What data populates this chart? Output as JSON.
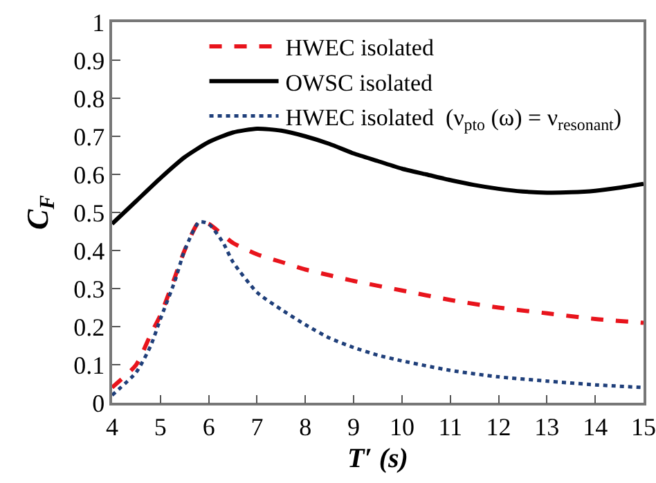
{
  "chart_data": {
    "type": "line",
    "xlabel": "T′ (s)",
    "ylabel": "C$_{F}$",
    "xlim": [
      4,
      15
    ],
    "xticks": [
      4,
      5,
      6,
      7,
      8,
      9,
      10,
      11,
      12,
      13,
      14,
      15
    ],
    "ylim": [
      0,
      1
    ],
    "yticks": [
      0,
      0.1,
      0.2,
      0.3,
      0.4,
      0.5,
      0.6,
      0.7,
      0.8,
      0.9,
      1
    ],
    "grid": false,
    "legend": "top",
    "marker": "none",
    "series": [
      {
        "name": "HWEC isolated",
        "color": "#e8141c",
        "line_style": "dashed",
        "x": [
          4,
          4.5,
          4.8,
          5,
          5.3,
          5.5,
          5.8,
          6,
          6.3,
          6.5,
          7,
          7.5,
          8,
          8.5,
          9,
          10,
          11,
          12,
          13,
          14,
          15
        ],
        "values": [
          0.04,
          0.1,
          0.18,
          0.23,
          0.33,
          0.4,
          0.475,
          0.47,
          0.44,
          0.42,
          0.39,
          0.37,
          0.35,
          0.335,
          0.32,
          0.295,
          0.27,
          0.25,
          0.235,
          0.22,
          0.21
        ]
      },
      {
        "name": "OWSC isolated",
        "color": "#000000",
        "line_style": "solid",
        "x": [
          4,
          4.5,
          5,
          5.5,
          6,
          6.5,
          7,
          7.5,
          8,
          8.5,
          9,
          9.5,
          10,
          10.5,
          11,
          11.5,
          12,
          12.5,
          13,
          13.5,
          14,
          14.5,
          15
        ],
        "values": [
          0.47,
          0.53,
          0.59,
          0.645,
          0.685,
          0.71,
          0.72,
          0.715,
          0.7,
          0.68,
          0.655,
          0.635,
          0.615,
          0.6,
          0.585,
          0.572,
          0.562,
          0.555,
          0.552,
          0.553,
          0.557,
          0.565,
          0.575
        ]
      },
      {
        "name": "HWEC isolated  (ν$_{pto}$ (ω) = ν$_{resonant}$)",
        "color": "#1f3f7a",
        "line_style": "dotted",
        "x": [
          4,
          4.5,
          4.8,
          5,
          5.3,
          5.5,
          5.8,
          6,
          6.3,
          6.5,
          7,
          7.5,
          8,
          8.5,
          9,
          9.5,
          10,
          11,
          12,
          13,
          14,
          15
        ],
        "values": [
          0.02,
          0.08,
          0.15,
          0.22,
          0.32,
          0.4,
          0.475,
          0.47,
          0.42,
          0.37,
          0.29,
          0.245,
          0.205,
          0.17,
          0.145,
          0.125,
          0.11,
          0.085,
          0.068,
          0.057,
          0.047,
          0.04
        ]
      }
    ]
  }
}
